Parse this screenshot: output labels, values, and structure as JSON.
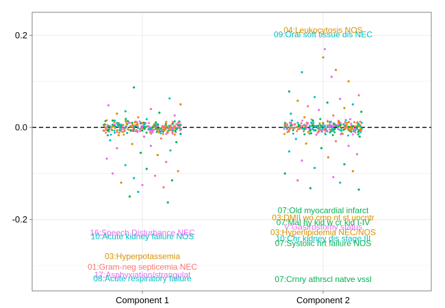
{
  "chart_data": {
    "type": "scatter",
    "title": "",
    "xlabel": "",
    "ylabel": "",
    "categories": [
      "Component 1",
      "Component 2"
    ],
    "ylim": [
      -0.355,
      0.25
    ],
    "yticks": [
      0.2,
      0.0,
      -0.2
    ],
    "ytick_labels": [
      "0.2",
      "0.0",
      "-0.2"
    ],
    "reference_line": {
      "y": 0.0,
      "style": "dashed"
    },
    "grid": true,
    "legend": "none",
    "palette": {
      "red": "#F8766D",
      "orange": "#D89000",
      "green": "#00B050",
      "teal": "#00BFC4",
      "magenta": "#E76BF3",
      "grid": "#ebebeb",
      "border": "#7f7f7f"
    },
    "annotations": [
      {
        "category": "Component 1",
        "label": "16:Speech Disturbance NEC",
        "y": -0.229,
        "color": "magenta"
      },
      {
        "category": "Component 1",
        "label": "10:Acute kidney failure NOS",
        "y": -0.237,
        "color": "teal"
      },
      {
        "category": "Component 1",
        "label": "03:Hyperpotassemia",
        "y": -0.28,
        "color": "orange"
      },
      {
        "category": "Component 1",
        "label": "01:Gram-neg septicemia NEC",
        "y": -0.303,
        "color": "red"
      },
      {
        "category": "Component 1",
        "label": "17:Asphyxiation/strangulat",
        "y": -0.32,
        "color": "magenta"
      },
      {
        "category": "Component 1",
        "label": "08:Acute respiratory failure",
        "y": -0.328,
        "color": "teal"
      },
      {
        "category": "Component 2",
        "label": "04:Leukocytosis NOS",
        "y": 0.211,
        "color": "orange"
      },
      {
        "category": "Component 2",
        "label": "09:Oral soft tissue dis NEC",
        "y": 0.202,
        "color": "teal"
      },
      {
        "category": "Component 2",
        "label": "07:Old myocardial infarct",
        "y": -0.18,
        "color": "green"
      },
      {
        "category": "Component 2",
        "label": "03:DMII wo cmp nt st uncntr",
        "y": -0.196,
        "color": "orange"
      },
      {
        "category": "Component 2",
        "label": "07:Mal hy kid w cr kid I-IV",
        "y": -0.206,
        "color": "green"
      },
      {
        "category": "Component 2",
        "label": "V:Gastrostomy status",
        "y": -0.216,
        "color": "magenta"
      },
      {
        "category": "Component 2",
        "label": "03:Hyperlipidemia NEC/NOS",
        "y": -0.228,
        "color": "orange"
      },
      {
        "category": "Component 2",
        "label": "10:Chr kidney dis stage III",
        "y": -0.241,
        "color": "teal"
      },
      {
        "category": "Component 2",
        "label": "07:Systolic hrt failure NOS",
        "y": -0.252,
        "color": "green"
      },
      {
        "category": "Component 2",
        "label": "07:Crnry athrscl natve vssl",
        "y": -0.33,
        "color": "green"
      }
    ],
    "series": [
      {
        "category": "Component 1",
        "points": [
          {
            "x": -0.1,
            "y": 0.087,
            "color": "green"
          },
          {
            "x": 0.32,
            "y": 0.063,
            "color": "teal"
          },
          {
            "x": 0.45,
            "y": 0.05,
            "color": "orange"
          },
          {
            "x": -0.4,
            "y": 0.048,
            "color": "magenta"
          },
          {
            "x": 0.1,
            "y": 0.04,
            "color": "red"
          },
          {
            "x": -0.2,
            "y": 0.035,
            "color": "teal"
          },
          {
            "x": 0.2,
            "y": 0.032,
            "color": "green"
          },
          {
            "x": -0.3,
            "y": 0.03,
            "color": "orange"
          },
          {
            "x": 0.38,
            "y": 0.026,
            "color": "magenta"
          },
          {
            "x": -0.05,
            "y": 0.022,
            "color": "red"
          },
          {
            "x": 0.05,
            "y": 0.018,
            "color": "teal"
          },
          {
            "x": -0.35,
            "y": 0.015,
            "color": "green"
          },
          {
            "x": 0.28,
            "y": 0.012,
            "color": "orange"
          },
          {
            "x": -0.15,
            "y": 0.01,
            "color": "magenta"
          },
          {
            "x": 0.15,
            "y": 0.008,
            "color": "red"
          },
          {
            "x": -0.25,
            "y": 0.006,
            "color": "teal"
          },
          {
            "x": 0.42,
            "y": 0.005,
            "color": "green"
          },
          {
            "x": -0.45,
            "y": 0.004,
            "color": "orange"
          },
          {
            "x": 0.0,
            "y": 0.003,
            "color": "magenta"
          },
          {
            "x": 0.25,
            "y": 0.002,
            "color": "red"
          },
          {
            "x": -0.1,
            "y": 0.001,
            "color": "teal"
          },
          {
            "x": 0.12,
            "y": 0.0,
            "color": "green"
          },
          {
            "x": -0.32,
            "y": -0.001,
            "color": "orange"
          },
          {
            "x": 0.35,
            "y": -0.002,
            "color": "magenta"
          },
          {
            "x": -0.22,
            "y": -0.003,
            "color": "red"
          },
          {
            "x": 0.08,
            "y": -0.004,
            "color": "teal"
          },
          {
            "x": -0.4,
            "y": -0.005,
            "color": "green"
          },
          {
            "x": 0.18,
            "y": -0.006,
            "color": "orange"
          },
          {
            "x": -0.08,
            "y": -0.008,
            "color": "magenta"
          },
          {
            "x": 0.3,
            "y": -0.01,
            "color": "red"
          },
          {
            "x": -0.18,
            "y": -0.012,
            "color": "teal"
          },
          {
            "x": 0.45,
            "y": -0.014,
            "color": "green"
          },
          {
            "x": -0.28,
            "y": -0.017,
            "color": "orange"
          },
          {
            "x": 0.02,
            "y": -0.02,
            "color": "magenta"
          },
          {
            "x": 0.22,
            "y": -0.024,
            "color": "red"
          },
          {
            "x": -0.38,
            "y": -0.028,
            "color": "teal"
          },
          {
            "x": 0.4,
            "y": -0.032,
            "color": "green"
          },
          {
            "x": -0.12,
            "y": -0.036,
            "color": "orange"
          },
          {
            "x": 0.1,
            "y": -0.04,
            "color": "magenta"
          },
          {
            "x": -0.3,
            "y": -0.045,
            "color": "red"
          },
          {
            "x": 0.33,
            "y": -0.05,
            "color": "teal"
          },
          {
            "x": -0.02,
            "y": -0.055,
            "color": "green"
          },
          {
            "x": 0.18,
            "y": -0.06,
            "color": "orange"
          },
          {
            "x": -0.42,
            "y": -0.068,
            "color": "magenta"
          },
          {
            "x": 0.28,
            "y": -0.075,
            "color": "red"
          },
          {
            "x": -0.2,
            "y": -0.082,
            "color": "teal"
          },
          {
            "x": 0.05,
            "y": -0.09,
            "color": "green"
          },
          {
            "x": 0.42,
            "y": -0.095,
            "color": "orange"
          },
          {
            "x": -0.35,
            "y": -0.1,
            "color": "magenta"
          },
          {
            "x": 0.15,
            "y": -0.105,
            "color": "red"
          },
          {
            "x": -0.1,
            "y": -0.11,
            "color": "teal"
          },
          {
            "x": 0.35,
            "y": -0.115,
            "color": "green"
          },
          {
            "x": -0.25,
            "y": -0.12,
            "color": "orange"
          },
          {
            "x": 0.0,
            "y": -0.125,
            "color": "magenta"
          },
          {
            "x": 0.25,
            "y": -0.13,
            "color": "red"
          },
          {
            "x": -0.05,
            "y": -0.14,
            "color": "teal"
          },
          {
            "x": -0.15,
            "y": -0.15,
            "color": "green"
          },
          {
            "x": 0.3,
            "y": -0.163,
            "color": "green"
          }
        ]
      },
      {
        "category": "Component 2",
        "points": [
          {
            "x": 0.02,
            "y": 0.17,
            "color": "magenta"
          },
          {
            "x": 0.0,
            "y": 0.152,
            "color": "orange"
          },
          {
            "x": 0.15,
            "y": 0.125,
            "color": "orange"
          },
          {
            "x": -0.25,
            "y": 0.12,
            "color": "teal"
          },
          {
            "x": 0.1,
            "y": 0.11,
            "color": "magenta"
          },
          {
            "x": 0.3,
            "y": 0.1,
            "color": "orange"
          },
          {
            "x": -0.4,
            "y": 0.078,
            "color": "green"
          },
          {
            "x": 0.42,
            "y": 0.07,
            "color": "red"
          },
          {
            "x": -0.1,
            "y": 0.066,
            "color": "teal"
          },
          {
            "x": 0.2,
            "y": 0.062,
            "color": "magenta"
          },
          {
            "x": -0.3,
            "y": 0.058,
            "color": "orange"
          },
          {
            "x": 0.05,
            "y": 0.054,
            "color": "green"
          },
          {
            "x": 0.35,
            "y": 0.05,
            "color": "teal"
          },
          {
            "x": -0.18,
            "y": 0.046,
            "color": "red"
          },
          {
            "x": 0.25,
            "y": 0.042,
            "color": "orange"
          },
          {
            "x": -0.05,
            "y": 0.038,
            "color": "magenta"
          },
          {
            "x": 0.45,
            "y": 0.034,
            "color": "green"
          },
          {
            "x": -0.38,
            "y": 0.03,
            "color": "teal"
          },
          {
            "x": 0.12,
            "y": 0.026,
            "color": "red"
          },
          {
            "x": -0.22,
            "y": 0.022,
            "color": "orange"
          },
          {
            "x": 0.32,
            "y": 0.018,
            "color": "magenta"
          },
          {
            "x": -0.12,
            "y": 0.015,
            "color": "green"
          },
          {
            "x": 0.08,
            "y": 0.012,
            "color": "teal"
          },
          {
            "x": 0.4,
            "y": 0.01,
            "color": "red"
          },
          {
            "x": -0.45,
            "y": 0.008,
            "color": "orange"
          },
          {
            "x": 0.18,
            "y": 0.006,
            "color": "magenta"
          },
          {
            "x": -0.28,
            "y": 0.004,
            "color": "green"
          },
          {
            "x": 0.0,
            "y": 0.002,
            "color": "teal"
          },
          {
            "x": 0.28,
            "y": 0.0,
            "color": "red"
          },
          {
            "x": -0.35,
            "y": -0.002,
            "color": "orange"
          },
          {
            "x": 0.38,
            "y": -0.004,
            "color": "magenta"
          },
          {
            "x": -0.15,
            "y": -0.006,
            "color": "green"
          },
          {
            "x": 0.1,
            "y": -0.008,
            "color": "teal"
          },
          {
            "x": -0.42,
            "y": -0.01,
            "color": "red"
          },
          {
            "x": 0.22,
            "y": -0.013,
            "color": "orange"
          },
          {
            "x": -0.08,
            "y": -0.016,
            "color": "magenta"
          },
          {
            "x": 0.43,
            "y": -0.02,
            "color": "green"
          },
          {
            "x": -0.32,
            "y": -0.025,
            "color": "teal"
          },
          {
            "x": 0.15,
            "y": -0.03,
            "color": "red"
          },
          {
            "x": -0.2,
            "y": -0.035,
            "color": "orange"
          },
          {
            "x": 0.3,
            "y": -0.04,
            "color": "magenta"
          },
          {
            "x": -0.02,
            "y": -0.045,
            "color": "green"
          },
          {
            "x": -0.4,
            "y": -0.052,
            "color": "teal"
          },
          {
            "x": 0.4,
            "y": -0.058,
            "color": "red"
          },
          {
            "x": 0.06,
            "y": -0.065,
            "color": "orange"
          },
          {
            "x": -0.25,
            "y": -0.072,
            "color": "magenta"
          },
          {
            "x": 0.25,
            "y": -0.08,
            "color": "green"
          },
          {
            "x": -0.1,
            "y": -0.088,
            "color": "teal"
          },
          {
            "x": 0.35,
            "y": -0.095,
            "color": "orange"
          },
          {
            "x": -0.45,
            "y": -0.1,
            "color": "green"
          },
          {
            "x": 0.12,
            "y": -0.108,
            "color": "magenta"
          },
          {
            "x": -0.3,
            "y": -0.115,
            "color": "red"
          },
          {
            "x": 0.2,
            "y": -0.12,
            "color": "teal"
          },
          {
            "x": -0.15,
            "y": -0.132,
            "color": "green"
          },
          {
            "x": 0.42,
            "y": -0.135,
            "color": "green"
          }
        ]
      }
    ],
    "jitter_bands": [
      {
        "category": "Component 1",
        "count": 260,
        "x_half_width": 0.46,
        "y_spread": 0.014,
        "colors": [
          "red",
          "orange",
          "green",
          "teal",
          "magenta"
        ]
      },
      {
        "category": "Component 2",
        "count": 260,
        "x_half_width": 0.46,
        "y_spread": 0.014,
        "colors": [
          "red",
          "orange",
          "green",
          "teal",
          "magenta"
        ]
      }
    ]
  }
}
